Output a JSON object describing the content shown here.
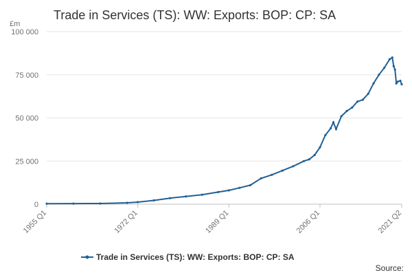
{
  "chart_data": {
    "type": "line",
    "title": "Trade in Services (TS): WW: Exports: BOP: CP: SA",
    "unit_label": "£m",
    "ylabel": "",
    "xlabel": "",
    "ylim": [
      0,
      100000
    ],
    "y_ticks": [
      0,
      25000,
      50000,
      75000,
      100000
    ],
    "y_tick_labels": [
      "0",
      "25 000",
      "50 000",
      "75 000",
      "100 000"
    ],
    "x_tick_labels": [
      "1955 Q1",
      "1972 Q1",
      "1989 Q1",
      "2006 Q1",
      "2021 Q2"
    ],
    "x_range": [
      "1955 Q1",
      "2021 Q2"
    ],
    "grid": "horizontal",
    "legend_position": "bottom",
    "series": [
      {
        "name": "Trade in Services (TS): WW: Exports: BOP: CP: SA",
        "color": "#206095",
        "marker": "circle",
        "x": [
          "1955 Q1",
          "1960 Q1",
          "1965 Q1",
          "1970 Q1",
          "1972 Q1",
          "1975 Q1",
          "1978 Q1",
          "1981 Q1",
          "1984 Q1",
          "1987 Q1",
          "1989 Q1",
          "1991 Q1",
          "1993 Q1",
          "1995 Q1",
          "1997 Q1",
          "1999 Q1",
          "2001 Q1",
          "2003 Q1",
          "2004 Q1",
          "2005 Q1",
          "2006 Q1",
          "2007 Q1",
          "2008 Q1",
          "2008 Q3",
          "2009 Q1",
          "2010 Q1",
          "2011 Q1",
          "2012 Q1",
          "2013 Q1",
          "2014 Q1",
          "2015 Q1",
          "2016 Q1",
          "2017 Q1",
          "2018 Q1",
          "2019 Q1",
          "2019 Q3",
          "2019 Q4",
          "2020 Q1",
          "2020 Q2",
          "2020 Q3",
          "2021 Q1",
          "2021 Q2"
        ],
        "values": [
          300,
          350,
          400,
          800,
          1200,
          2200,
          3500,
          4500,
          5500,
          7000,
          8000,
          9500,
          11000,
          15000,
          17000,
          19500,
          22000,
          25000,
          26000,
          28500,
          33000,
          40000,
          44000,
          47500,
          43500,
          51000,
          54000,
          56000,
          59500,
          60500,
          64000,
          70000,
          75000,
          79000,
          84000,
          85000,
          80000,
          78000,
          70000,
          71000,
          71500,
          69500
        ]
      }
    ],
    "source_label": "Source:"
  }
}
